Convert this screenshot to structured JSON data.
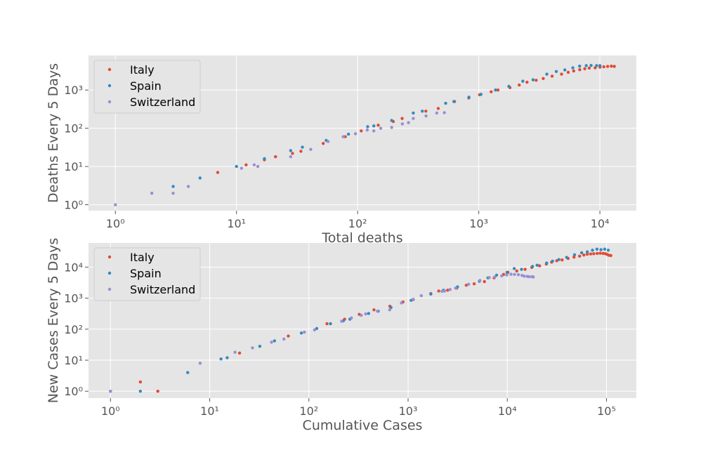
{
  "colors": {
    "Italy": "#E24A33",
    "Spain": "#348ABD",
    "Switzerland": "#988ED5"
  },
  "chart_data": [
    {
      "type": "scatter",
      "xscale": "log",
      "yscale": "log",
      "xlim": [
        0.6,
        20000
      ],
      "ylim": [
        0.7,
        8000
      ],
      "xticks": [
        1,
        10,
        100,
        1000,
        10000
      ],
      "yticks": [
        1,
        10,
        100,
        1000
      ],
      "xlabel": "Total deaths",
      "ylabel": "Deaths Every 5 Days",
      "grid": true,
      "legend_position": "upper-left",
      "series": [
        {
          "name": "Italy",
          "points": [
            [
              7,
              7
            ],
            [
              12,
              11
            ],
            [
              17,
              15
            ],
            [
              21,
              18
            ],
            [
              29,
              22
            ],
            [
              34,
              25
            ],
            [
              52,
              40
            ],
            [
              79,
              60
            ],
            [
              107,
              85
            ],
            [
              148,
              120
            ],
            [
              197,
              150
            ],
            [
              233,
              180
            ],
            [
              366,
              280
            ],
            [
              463,
              330
            ],
            [
              631,
              500
            ],
            [
              827,
              620
            ],
            [
              1016,
              750
            ],
            [
              1266,
              900
            ],
            [
              1441,
              1000
            ],
            [
              1809,
              1150
            ],
            [
              2158,
              1350
            ],
            [
              2503,
              1600
            ],
            [
              2978,
              1800
            ],
            [
              3405,
              2000
            ],
            [
              4032,
              2300
            ],
            [
              4825,
              2600
            ],
            [
              5476,
              2900
            ],
            [
              6077,
              3150
            ],
            [
              6820,
              3400
            ],
            [
              7503,
              3600
            ],
            [
              8165,
              3750
            ],
            [
              9134,
              3800
            ],
            [
              10023,
              3950
            ],
            [
              10779,
              4050
            ],
            [
              11591,
              4150
            ],
            [
              12428,
              4200
            ],
            [
              13155,
              4150
            ]
          ]
        },
        {
          "name": "Spain",
          "points": [
            [
              3,
              3
            ],
            [
              5,
              5
            ],
            [
              10,
              10
            ],
            [
              17,
              16
            ],
            [
              28,
              26
            ],
            [
              35,
              32
            ],
            [
              55,
              48
            ],
            [
              84,
              70
            ],
            [
              121,
              110
            ],
            [
              136,
              115
            ],
            [
              191,
              160
            ],
            [
              288,
              250
            ],
            [
              342,
              280
            ],
            [
              533,
              450
            ],
            [
              623,
              500
            ],
            [
              830,
              650
            ],
            [
              1043,
              770
            ],
            [
              1375,
              1000
            ],
            [
              1772,
              1250
            ],
            [
              2311,
              1700
            ],
            [
              2808,
              1850
            ],
            [
              3647,
              2600
            ],
            [
              4365,
              3050
            ],
            [
              5138,
              3350
            ],
            [
              5982,
              3800
            ],
            [
              6803,
              4200
            ],
            [
              7716,
              4350
            ],
            [
              8464,
              4400
            ],
            [
              9387,
              4350
            ],
            [
              10003,
              4350
            ]
          ]
        },
        {
          "name": "Switzerland",
          "points": [
            [
              1,
              1
            ],
            [
              2,
              2
            ],
            [
              3,
              2
            ],
            [
              4,
              3
            ],
            [
              11,
              9
            ],
            [
              14,
              11
            ],
            [
              15,
              10
            ],
            [
              28,
              18
            ],
            [
              41,
              28
            ],
            [
              57,
              45
            ],
            [
              76,
              60
            ],
            [
              96,
              72
            ],
            [
              120,
              90
            ],
            [
              136,
              85
            ],
            [
              155,
              100
            ],
            [
              191,
              105
            ],
            [
              234,
              130
            ],
            [
              263,
              140
            ],
            [
              288,
              180
            ],
            [
              367,
              210
            ],
            [
              450,
              250
            ],
            [
              520,
              255
            ]
          ]
        }
      ]
    },
    {
      "type": "scatter",
      "xscale": "log",
      "yscale": "log",
      "xlim": [
        0.6,
        200000
      ],
      "ylim": [
        0.6,
        60000
      ],
      "xticks": [
        1,
        10,
        100,
        1000,
        10000,
        100000
      ],
      "yticks": [
        1,
        10,
        100,
        1000,
        10000
      ],
      "xlabel": "Cumulative Cases",
      "ylabel": "New Cases Every 5 Days",
      "grid": true,
      "legend_position": "upper-left",
      "series": [
        {
          "name": "Italy",
          "points": [
            [
              2,
              2
            ],
            [
              3,
              1
            ],
            [
              20,
              17
            ],
            [
              62,
              60
            ],
            [
              152,
              150
            ],
            [
              229,
              210
            ],
            [
              322,
              300
            ],
            [
              453,
              420
            ],
            [
              655,
              550
            ],
            [
              888,
              750
            ],
            [
              1128,
              900
            ],
            [
              1694,
              1400
            ],
            [
              2036,
              1700
            ],
            [
              2502,
              1800
            ],
            [
              3089,
              2100
            ],
            [
              3858,
              2600
            ],
            [
              4636,
              2900
            ],
            [
              5883,
              3400
            ],
            [
              7375,
              4500
            ],
            [
              9172,
              5800
            ],
            [
              10149,
              6800
            ],
            [
              12462,
              7500
            ],
            [
              15113,
              8500
            ],
            [
              17660,
              9800
            ],
            [
              21157,
              11000
            ],
            [
              24747,
              12500
            ],
            [
              27980,
              14500
            ],
            [
              31506,
              16000
            ],
            [
              35713,
              17000
            ],
            [
              41035,
              19000
            ],
            [
              47021,
              21000
            ],
            [
              53578,
              22500
            ],
            [
              59138,
              24500
            ],
            [
              63927,
              26000
            ],
            [
              69176,
              26500
            ],
            [
              74386,
              27000
            ],
            [
              80589,
              27500
            ],
            [
              86498,
              28000
            ],
            [
              92472,
              27500
            ],
            [
              97689,
              27000
            ],
            [
              101739,
              25500
            ],
            [
              105792,
              24000
            ],
            [
              110574,
              23500
            ]
          ]
        },
        {
          "name": "Spain",
          "points": [
            [
              1,
              1
            ],
            [
              2,
              1
            ],
            [
              6,
              4
            ],
            [
              13,
              11
            ],
            [
              15,
              12
            ],
            [
              32,
              28
            ],
            [
              45,
              42
            ],
            [
              84,
              75
            ],
            [
              120,
              105
            ],
            [
              165,
              150
            ],
            [
              222,
              185
            ],
            [
              259,
              210
            ],
            [
              400,
              320
            ],
            [
              500,
              380
            ],
            [
              673,
              500
            ],
            [
              1073,
              850
            ],
            [
              1695,
              1350
            ],
            [
              2277,
              1800
            ],
            [
              3146,
              2300
            ],
            [
              5232,
              3500
            ],
            [
              6391,
              4500
            ],
            [
              7798,
              5500
            ],
            [
              9942,
              6800
            ],
            [
              11748,
              9000
            ],
            [
              13910,
              8500
            ],
            [
              17963,
              10500
            ],
            [
              19980,
              11500
            ],
            [
              24926,
              13500
            ],
            [
              28572,
              15500
            ],
            [
              33089,
              17500
            ],
            [
              39673,
              20500
            ],
            [
              47610,
              25000
            ],
            [
              56188,
              29000
            ],
            [
              64059,
              31000
            ],
            [
              72248,
              35000
            ],
            [
              80110,
              38000
            ],
            [
              87956,
              36500
            ],
            [
              95923,
              38000
            ],
            [
              104118,
              35000
            ]
          ]
        },
        {
          "name": "Switzerland",
          "points": [
            [
              1,
              1
            ],
            [
              8,
              8
            ],
            [
              18,
              18
            ],
            [
              27,
              25
            ],
            [
              42,
              38
            ],
            [
              56,
              48
            ],
            [
              90,
              80
            ],
            [
              114,
              95
            ],
            [
              214,
              180
            ],
            [
              268,
              230
            ],
            [
              337,
              280
            ],
            [
              374,
              310
            ],
            [
              491,
              380
            ],
            [
              652,
              420
            ],
            [
              858,
              700
            ],
            [
              1125,
              920
            ],
            [
              1359,
              1200
            ],
            [
              2200,
              1650
            ],
            [
              2330,
              1700
            ],
            [
              2650,
              1900
            ],
            [
              3010,
              2100
            ],
            [
              4075,
              2800
            ],
            [
              5294,
              3700
            ],
            [
              6575,
              4600
            ],
            [
              7474,
              4800
            ],
            [
              8795,
              5200
            ],
            [
              9877,
              5600
            ],
            [
              10897,
              5900
            ],
            [
              11811,
              5800
            ],
            [
              12928,
              5700
            ],
            [
              14076,
              5400
            ],
            [
              14829,
              5100
            ],
            [
              15922,
              5000
            ],
            [
              16605,
              4900
            ],
            [
              17768,
              4900
            ],
            [
              18267,
              4800
            ]
          ]
        }
      ]
    }
  ]
}
